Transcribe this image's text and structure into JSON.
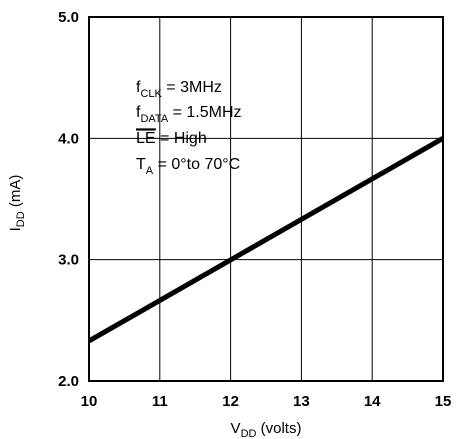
{
  "chart_data": {
    "type": "line",
    "xlabel": {
      "main": "V",
      "sub": "DD",
      "tail": " (volts)"
    },
    "ylabel": {
      "main": "I",
      "sub": "DD",
      "tail": " (mA)"
    },
    "xlim": [
      10,
      15
    ],
    "ylim": [
      2.0,
      5.0
    ],
    "x_ticks": [
      10,
      11,
      12,
      13,
      14,
      15
    ],
    "y_ticks": [
      2.0,
      3.0,
      4.0,
      5.0
    ],
    "x_tick_labels": [
      "10",
      "11",
      "12",
      "13",
      "14",
      "15"
    ],
    "y_tick_labels": [
      "2.0",
      "3.0",
      "4.0",
      "5.0"
    ],
    "grid": true,
    "series": [
      {
        "x": [
          10,
          15
        ],
        "y": [
          2.33,
          4.0
        ]
      }
    ],
    "annotations": [
      {
        "main": "f",
        "sub": "CLK",
        "tail": " = 3MHz"
      },
      {
        "main": "f",
        "sub": "DATA",
        "tail": " = 1.5MHz"
      },
      {
        "main": "LE",
        "sub": "",
        "tail": " = High",
        "overline": true
      },
      {
        "main": "T",
        "sub": "A",
        "tail": " = 0°to 70°C"
      }
    ],
    "colors": {
      "line": "#000000",
      "grid": "#000000",
      "background": "#ffffff"
    }
  }
}
